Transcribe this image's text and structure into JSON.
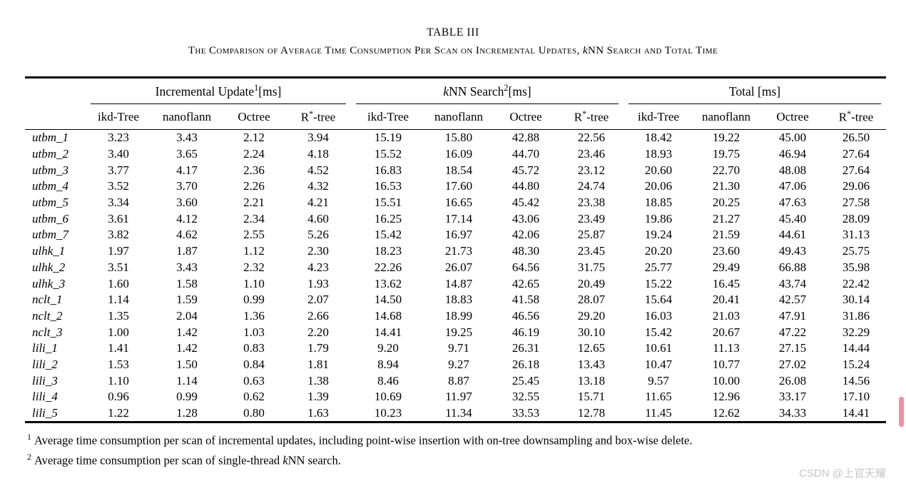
{
  "page": {
    "title": "TABLE III",
    "subtitle": {
      "part1": "The Comparison of Average Time Consumption Per Scan on Incremental Updates, ",
      "italic_k": "k",
      "part2": "NN Search and Total Time"
    }
  },
  "table": {
    "groups": [
      {
        "pre": "Incremental Update",
        "sup": "1",
        "unit": "[ms]"
      },
      {
        "italic_pre": "k",
        "pre": "NN Search",
        "sup": "2",
        "unit": "[ms]"
      },
      {
        "pre": "Total ",
        "unit": "[ms]"
      }
    ],
    "columns": [
      {
        "text": "ikd-Tree"
      },
      {
        "text": "nanoflann"
      },
      {
        "text": "Octree"
      },
      {
        "pre": "R",
        "sup": "*",
        "post": "-tree"
      }
    ],
    "rows": [
      {
        "label": "utbm_1",
        "values": [
          "3.23",
          "3.43",
          "2.12",
          "3.94",
          "15.19",
          "15.80",
          "42.88",
          "22.56",
          "18.42",
          "19.22",
          "45.00",
          "26.50"
        ],
        "bold": [
          2,
          4,
          8
        ]
      },
      {
        "label": "utbm_2",
        "values": [
          "3.40",
          "3.65",
          "2.24",
          "4.18",
          "15.52",
          "16.09",
          "44.70",
          "23.46",
          "18.93",
          "19.75",
          "46.94",
          "27.64"
        ],
        "bold": [
          2,
          4,
          8
        ]
      },
      {
        "label": "utbm_3",
        "values": [
          "3.77",
          "4.17",
          "2.36",
          "4.52",
          "16.83",
          "18.54",
          "45.72",
          "23.12",
          "20.60",
          "22.70",
          "48.08",
          "27.64"
        ],
        "bold": [
          2,
          4,
          8
        ]
      },
      {
        "label": "utbm_4",
        "values": [
          "3.52",
          "3.70",
          "2.26",
          "4.32",
          "16.53",
          "17.60",
          "44.80",
          "24.74",
          "20.06",
          "21.30",
          "47.06",
          "29.06"
        ],
        "bold": [
          2,
          4,
          8
        ]
      },
      {
        "label": "utbm_5",
        "values": [
          "3.34",
          "3.60",
          "2.21",
          "4.21",
          "15.51",
          "16.65",
          "45.42",
          "23.38",
          "18.85",
          "20.25",
          "47.63",
          "27.58"
        ],
        "bold": [
          2,
          4,
          8
        ]
      },
      {
        "label": "utbm_6",
        "values": [
          "3.61",
          "4.12",
          "2.34",
          "4.60",
          "16.25",
          "17.14",
          "43.06",
          "23.49",
          "19.86",
          "21.27",
          "45.40",
          "28.09"
        ],
        "bold": [
          2,
          4,
          8
        ]
      },
      {
        "label": "utbm_7",
        "values": [
          "3.82",
          "4.62",
          "2.55",
          "5.26",
          "15.42",
          "16.97",
          "42.06",
          "25.87",
          "19.24",
          "21.59",
          "44.61",
          "31.13"
        ],
        "bold": [
          2,
          4,
          8
        ]
      },
      {
        "label": "ulhk_1",
        "values": [
          "1.97",
          "1.87",
          "1.12",
          "2.30",
          "18.23",
          "21.73",
          "48.30",
          "23.45",
          "20.20",
          "23.60",
          "49.43",
          "25.75"
        ],
        "bold": [
          2,
          4,
          8
        ]
      },
      {
        "label": "ulhk_2",
        "values": [
          "3.51",
          "3.43",
          "2.32",
          "4.23",
          "22.26",
          "26.07",
          "64.56",
          "31.75",
          "25.77",
          "29.49",
          "66.88",
          "35.98"
        ],
        "bold": [
          2,
          4,
          8
        ]
      },
      {
        "label": "ulhk_3",
        "values": [
          "1.60",
          "1.58",
          "1.10",
          "1.93",
          "13.62",
          "14.87",
          "42.65",
          "20.49",
          "15.22",
          "16.45",
          "43.74",
          "22.42"
        ],
        "bold": [
          2,
          4,
          8
        ]
      },
      {
        "label": "nclt_1",
        "values": [
          "1.14",
          "1.59",
          "0.99",
          "2.07",
          "14.50",
          "18.83",
          "41.58",
          "28.07",
          "15.64",
          "20.41",
          "42.57",
          "30.14"
        ],
        "bold": [
          2,
          4,
          8
        ]
      },
      {
        "label": "nclt_2",
        "values": [
          "1.35",
          "2.04",
          "1.36",
          "2.66",
          "14.68",
          "18.99",
          "46.56",
          "29.20",
          "16.03",
          "21.03",
          "47.91",
          "31.86"
        ],
        "bold": [
          0,
          4,
          8
        ]
      },
      {
        "label": "nclt_3",
        "values": [
          "1.00",
          "1.42",
          "1.03",
          "2.20",
          "14.41",
          "19.25",
          "46.19",
          "30.10",
          "15.42",
          "20.67",
          "47.22",
          "32.29"
        ],
        "bold": [
          0,
          4,
          8
        ]
      },
      {
        "label": "lili_1",
        "values": [
          "1.41",
          "1.42",
          "0.83",
          "1.79",
          "9.20",
          "9.71",
          "26.31",
          "12.65",
          "10.61",
          "11.13",
          "27.15",
          "14.44"
        ],
        "bold": [
          2,
          4,
          8
        ]
      },
      {
        "label": "lili_2",
        "values": [
          "1.53",
          "1.50",
          "0.84",
          "1.81",
          "8.94",
          "9.27",
          "26.18",
          "13.43",
          "10.47",
          "10.77",
          "27.02",
          "15.24"
        ],
        "bold": [
          2,
          4,
          8
        ]
      },
      {
        "label": "lili_3",
        "values": [
          "1.10",
          "1.14",
          "0.63",
          "1.38",
          "8.46",
          "8.87",
          "25.45",
          "13.18",
          "9.57",
          "10.00",
          "26.08",
          "14.56"
        ],
        "bold": [
          2,
          4,
          8
        ]
      },
      {
        "label": "lili_4",
        "values": [
          "0.96",
          "0.99",
          "0.62",
          "1.39",
          "10.69",
          "11.97",
          "32.55",
          "15.71",
          "11.65",
          "12.96",
          "33.17",
          "17.10"
        ],
        "bold": [
          2,
          4,
          8
        ]
      },
      {
        "label": "lili_5",
        "values": [
          "1.22",
          "1.28",
          "0.80",
          "1.63",
          "10.23",
          "11.34",
          "33.53",
          "12.78",
          "11.45",
          "12.62",
          "34.33",
          "14.41"
        ],
        "bold": [
          2,
          4,
          8
        ]
      }
    ]
  },
  "footnotes": [
    {
      "marker": "1",
      "text": "Average time consumption per scan of incremental updates, including point-wise insertion with on-tree downsampling and box-wise delete."
    },
    {
      "marker": "2",
      "text_part1": "Average time consumption per scan of single-thread ",
      "italic_k": "k",
      "text_part2": "NN search."
    }
  ],
  "watermark": "CSDN @上官天耀",
  "colors": {
    "scrollbar_pink": "#f2919f",
    "watermark_gray": "#c6c6c6",
    "text_black": "#000000"
  }
}
